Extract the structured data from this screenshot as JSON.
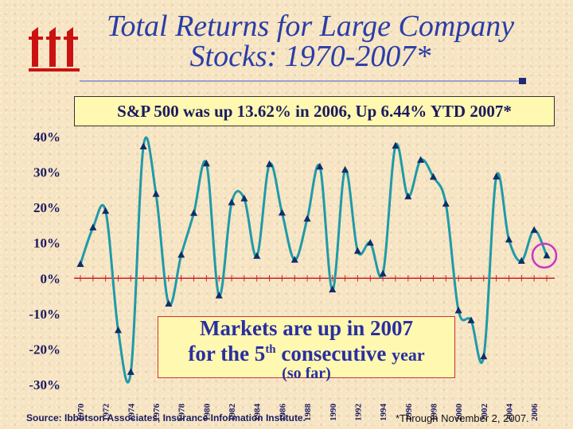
{
  "title": {
    "line1": "Total Returns for Large Company",
    "line2": "Stocks: 1970-2007*"
  },
  "banner": "S&P 500 was up 13.62% in 2006, Up 6.44% YTD 2007*",
  "callout": {
    "line1": "Markets are up in 2007",
    "line2_pre": "for the 5",
    "line2_sup": "th",
    "line2_mid": " consecutive ",
    "line2_end": "year",
    "line3": "(so far)"
  },
  "source": "Source:  Ibbotson Associates, Insurance Information Institute.",
  "footnote": "*Through November  2, 2007.",
  "colors": {
    "title": "#2a3da8",
    "line": "#1f9aa8",
    "marker": "#0d2f6a",
    "zero_line": "#cc2222",
    "highlight": "#cc33cc",
    "logo": "#cc1111"
  },
  "chart_data": {
    "type": "line",
    "title": "Total Returns for Large Company Stocks: 1970-2007*",
    "x": [
      1970,
      1971,
      1972,
      1973,
      1974,
      1975,
      1976,
      1977,
      1978,
      1979,
      1980,
      1981,
      1982,
      1983,
      1984,
      1985,
      1986,
      1987,
      1988,
      1989,
      1990,
      1991,
      1992,
      1993,
      1994,
      1995,
      1996,
      1997,
      1998,
      1999,
      2000,
      2001,
      2002,
      2003,
      2004,
      2005,
      2006,
      2007
    ],
    "values": [
      4.0,
      14.3,
      19.0,
      -14.7,
      -26.5,
      37.2,
      23.8,
      -7.2,
      6.6,
      18.4,
      32.4,
      -4.9,
      21.4,
      22.5,
      6.3,
      32.2,
      18.5,
      5.2,
      16.8,
      31.5,
      -3.2,
      30.6,
      7.7,
      10.0,
      1.3,
      37.4,
      23.1,
      33.4,
      28.6,
      21.0,
      -9.1,
      -11.9,
      -22.1,
      28.7,
      10.9,
      4.9,
      13.6,
      6.4
    ],
    "xtick_labels": [
      "1970",
      "1972",
      "1974",
      "1976",
      "1978",
      "1980",
      "1982",
      "1984",
      "1986",
      "1988",
      "1990",
      "1992",
      "1994",
      "1996",
      "1998",
      "2000",
      "2002",
      "2004",
      "2006"
    ],
    "ytick_labels": [
      "40%",
      "30%",
      "20%",
      "10%",
      "0%",
      "-10%",
      "-20%",
      "-30%"
    ],
    "ylim": [
      -30,
      40
    ],
    "grid": false,
    "highlight": "2007"
  }
}
